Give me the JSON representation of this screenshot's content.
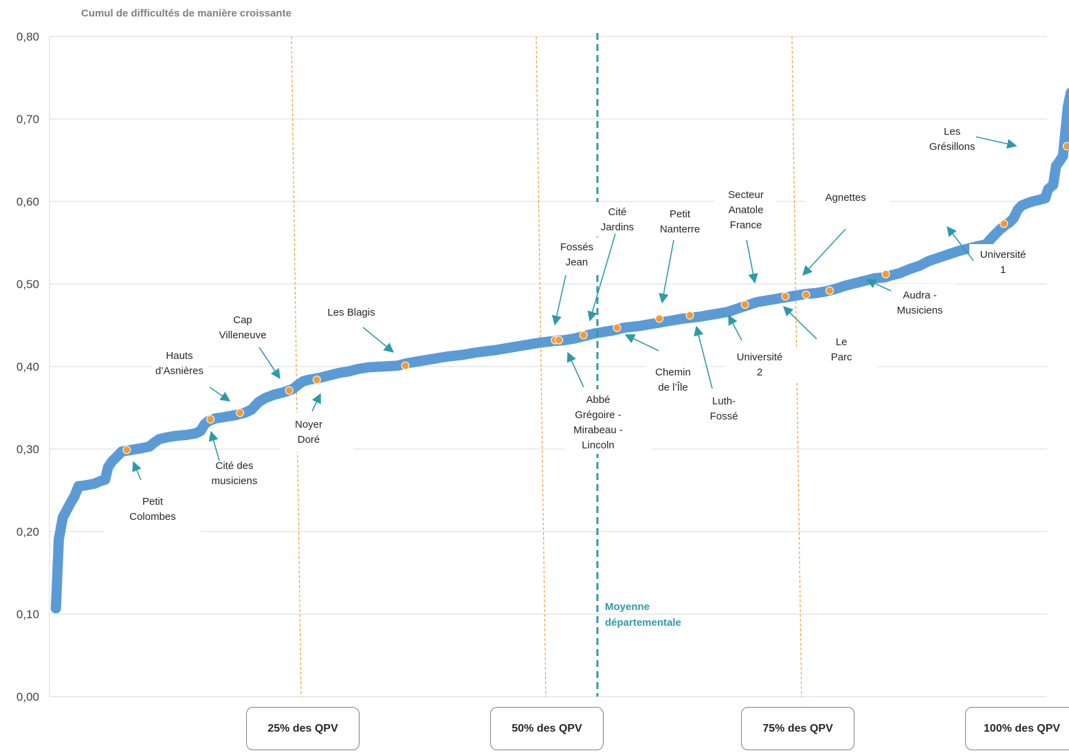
{
  "chart_data": {
    "type": "scatter",
    "title": "Cumul de difficultés de manière croissante",
    "ylim": [
      0,
      0.8
    ],
    "yticks": [
      "0,00",
      "0,10",
      "0,20",
      "0,30",
      "0,40",
      "0,50",
      "0,60",
      "0,70",
      "0,80"
    ],
    "grid": true,
    "x_quartiles": [
      25,
      50,
      75,
      100
    ],
    "mean_label": "Moyenne départementale",
    "mean_x": 55.1,
    "quartile_labels": [
      "25% des QPV",
      "50% des QPV",
      "75% des QPV",
      "100% des QPV"
    ],
    "series_blue": {
      "color": "#5b9bd5",
      "curve": [
        [
          0.3,
          0.107
        ],
        [
          0.6,
          0.191
        ],
        [
          1.0,
          0.217
        ],
        [
          1.4,
          0.226
        ],
        [
          1.8,
          0.235
        ],
        [
          2.2,
          0.243
        ],
        [
          2.6,
          0.255
        ],
        [
          3.3,
          0.256
        ],
        [
          4.2,
          0.258
        ],
        [
          4.8,
          0.261
        ],
        [
          5.3,
          0.263
        ],
        [
          5.6,
          0.278
        ],
        [
          6.0,
          0.285
        ],
        [
          6.5,
          0.291
        ],
        [
          7.0,
          0.297
        ],
        [
          8.0,
          0.299
        ],
        [
          9.0,
          0.301
        ],
        [
          9.8,
          0.303
        ],
        [
          10.3,
          0.308
        ],
        [
          10.8,
          0.312
        ],
        [
          11.5,
          0.314
        ],
        [
          12.5,
          0.316
        ],
        [
          13.5,
          0.317
        ],
        [
          14.5,
          0.319
        ],
        [
          15.0,
          0.322
        ],
        [
          15.4,
          0.33
        ],
        [
          15.8,
          0.334
        ],
        [
          16.5,
          0.337
        ],
        [
          17.5,
          0.339
        ],
        [
          18.5,
          0.341
        ],
        [
          19.5,
          0.344
        ],
        [
          20.2,
          0.348
        ],
        [
          20.5,
          0.352
        ],
        [
          20.9,
          0.357
        ],
        [
          21.6,
          0.362
        ],
        [
          22.5,
          0.366
        ],
        [
          23.5,
          0.369
        ],
        [
          24.4,
          0.373
        ],
        [
          24.8,
          0.377
        ],
        [
          25.4,
          0.382
        ],
        [
          26.0,
          0.384
        ],
        [
          27.0,
          0.386
        ],
        [
          28.0,
          0.389
        ],
        [
          29.0,
          0.392
        ],
        [
          30.0,
          0.394
        ],
        [
          31.0,
          0.397
        ],
        [
          32.0,
          0.399
        ],
        [
          33.5,
          0.4
        ],
        [
          35.0,
          0.401
        ],
        [
          36.0,
          0.404
        ],
        [
          37.0,
          0.406
        ],
        [
          38.0,
          0.408
        ],
        [
          39.0,
          0.41
        ],
        [
          40.0,
          0.412
        ],
        [
          41.5,
          0.414
        ],
        [
          43.0,
          0.417
        ],
        [
          45.0,
          0.42
        ],
        [
          46.5,
          0.423
        ],
        [
          47.5,
          0.425
        ],
        [
          48.5,
          0.427
        ],
        [
          49.5,
          0.429
        ],
        [
          51.0,
          0.431
        ],
        [
          52.0,
          0.432
        ],
        [
          53.0,
          0.434
        ],
        [
          54.0,
          0.437
        ],
        [
          55.0,
          0.44
        ],
        [
          56.0,
          0.442
        ],
        [
          57.0,
          0.444
        ],
        [
          58.0,
          0.447
        ],
        [
          59.5,
          0.449
        ],
        [
          61.0,
          0.452
        ],
        [
          62.5,
          0.455
        ],
        [
          64.0,
          0.458
        ],
        [
          65.5,
          0.46
        ],
        [
          67.0,
          0.463
        ],
        [
          68.5,
          0.466
        ],
        [
          69.5,
          0.47
        ],
        [
          70.5,
          0.474
        ],
        [
          71.5,
          0.478
        ],
        [
          72.5,
          0.48
        ],
        [
          73.5,
          0.482
        ],
        [
          74.5,
          0.484
        ],
        [
          75.5,
          0.486
        ],
        [
          76.5,
          0.488
        ],
        [
          77.5,
          0.489
        ],
        [
          78.5,
          0.491
        ],
        [
          79.5,
          0.494
        ],
        [
          80.5,
          0.498
        ],
        [
          81.5,
          0.501
        ],
        [
          82.5,
          0.504
        ],
        [
          83.5,
          0.507
        ],
        [
          84.5,
          0.508
        ],
        [
          85.0,
          0.51
        ],
        [
          86.0,
          0.513
        ],
        [
          87.0,
          0.518
        ],
        [
          88.0,
          0.522
        ],
        [
          89.0,
          0.528
        ],
        [
          90.0,
          0.532
        ],
        [
          91.0,
          0.536
        ],
        [
          92.0,
          0.54
        ],
        [
          93.0,
          0.543
        ],
        [
          94.0,
          0.546
        ],
        [
          94.8,
          0.548
        ],
        [
          95.3,
          0.555
        ],
        [
          95.7,
          0.56
        ],
        [
          96.2,
          0.566
        ],
        [
          96.7,
          0.571
        ],
        [
          97.2,
          0.575
        ],
        [
          97.6,
          0.58
        ],
        [
          98.0,
          0.59
        ],
        [
          98.4,
          0.595
        ],
        [
          99.0,
          0.598
        ],
        [
          99.5,
          0.6
        ],
        [
          100.2,
          0.602
        ],
        [
          100.8,
          0.604
        ],
        [
          101.1,
          0.615
        ],
        [
          101.6,
          0.62
        ],
        [
          101.9,
          0.643
        ],
        [
          102.2,
          0.648
        ],
        [
          102.6,
          0.655
        ],
        [
          103.1,
          0.715
        ],
        [
          103.4,
          0.732
        ],
        [
          104.0,
          0.732
        ],
        [
          104.4,
          0.752
        ]
      ]
    },
    "series_orange": {
      "color": "#f79a2e",
      "points": [
        {
          "x": 7.5,
          "y": 0.299
        },
        {
          "x": 16.0,
          "y": 0.336
        },
        {
          "x": 19.0,
          "y": 0.344
        },
        {
          "x": 24.0,
          "y": 0.371
        },
        {
          "x": 26.8,
          "y": 0.384
        },
        {
          "x": 35.8,
          "y": 0.401
        },
        {
          "x": 51.0,
          "y": 0.432
        },
        {
          "x": 51.4,
          "y": 0.432
        },
        {
          "x": 53.9,
          "y": 0.438
        },
        {
          "x": 57.3,
          "y": 0.447
        },
        {
          "x": 61.6,
          "y": 0.458
        },
        {
          "x": 64.7,
          "y": 0.462
        },
        {
          "x": 70.3,
          "y": 0.475
        },
        {
          "x": 74.4,
          "y": 0.485
        },
        {
          "x": 76.5,
          "y": 0.487
        },
        {
          "x": 78.9,
          "y": 0.492
        },
        {
          "x": 84.6,
          "y": 0.512
        },
        {
          "x": 96.6,
          "y": 0.573
        },
        {
          "x": 103.0,
          "y": 0.667
        }
      ]
    },
    "annotations": [
      {
        "text": [
          "Les",
          "Grésillons"
        ]
      },
      {
        "text": [
          "Agnettes"
        ]
      },
      {
        "text": [
          "Secteur",
          "Anatole",
          "France"
        ]
      },
      {
        "text": [
          "Petit",
          "Nanterre"
        ]
      },
      {
        "text": [
          "Cité",
          "Jardins"
        ]
      },
      {
        "text": [
          "Fossés",
          "Jean"
        ]
      },
      {
        "text": [
          "Les Blagis"
        ]
      },
      {
        "text": [
          "Cap",
          "Villeneuve"
        ]
      },
      {
        "text": [
          "Hauts",
          "d’Asnières"
        ]
      },
      {
        "text": [
          "Noyer",
          "Doré"
        ]
      },
      {
        "text": [
          "Cité des",
          "musiciens"
        ]
      },
      {
        "text": [
          "Petit",
          "Colombes"
        ]
      },
      {
        "text": [
          "Abbé",
          "Grégoire -",
          "Mirabeau -",
          "Lincoln"
        ]
      },
      {
        "text": [
          "Chemin",
          "de l’Île"
        ]
      },
      {
        "text": [
          "Luth-",
          "Fossé"
        ]
      },
      {
        "text": [
          "Université",
          "2"
        ]
      },
      {
        "text": [
          "Le",
          "Parc"
        ]
      },
      {
        "text": [
          "Audra -",
          "Musiciens"
        ]
      },
      {
        "text": [
          "Université",
          "1"
        ]
      }
    ]
  }
}
